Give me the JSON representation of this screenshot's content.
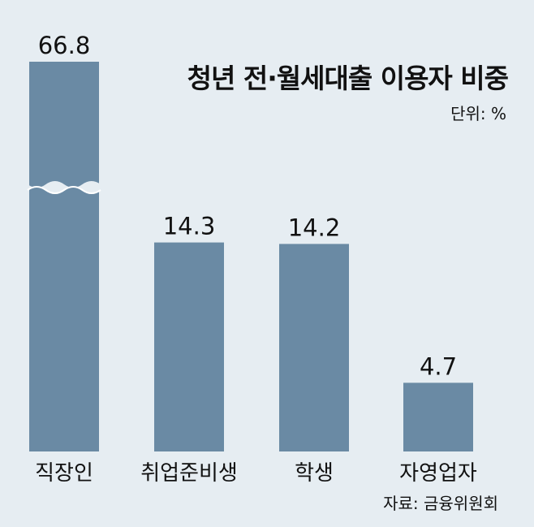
{
  "chart_data": {
    "type": "bar",
    "title": "청년 전·월세대출 이용자 비중",
    "unit": "단위: %",
    "source": "자료: 금융위원회",
    "categories": [
      "직장인",
      "취업준비생",
      "학생",
      "자영업자"
    ],
    "values": [
      66.8,
      14.3,
      14.2,
      4.7
    ],
    "value_labels": [
      "66.8",
      "14.3",
      "14.2",
      "4.7"
    ],
    "axis_break_on": "직장인",
    "xlabel": "",
    "ylabel": "",
    "grid": false,
    "legend": "none",
    "colors": {
      "bar": "#6a8aa4",
      "background": "#e6edf2",
      "text": "#111111"
    }
  }
}
